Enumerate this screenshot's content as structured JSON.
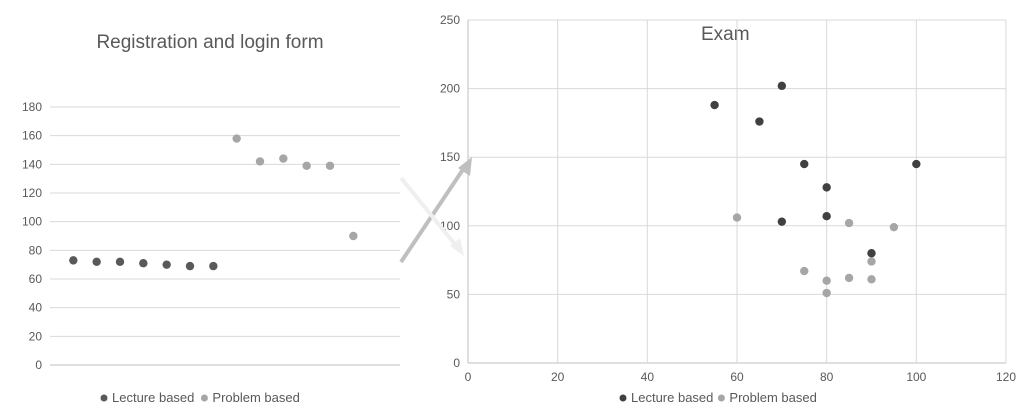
{
  "chart_data": [
    {
      "type": "scatter",
      "title": "Registration and login form",
      "xlabel": "",
      "ylabel": "",
      "ylim": [
        0,
        180
      ],
      "ytick_step": 20,
      "xlim": [
        0,
        15
      ],
      "x_tick_labels_shown": false,
      "grid": "horizontal",
      "legend": "bottom",
      "series": [
        {
          "name": "Lecture based",
          "color": "#595959",
          "x": [
            1,
            2,
            3,
            4,
            5,
            6,
            7
          ],
          "y": [
            73,
            72,
            72,
            71,
            70,
            69,
            69
          ]
        },
        {
          "name": "Problem based",
          "color": "#a6a6a6",
          "x": [
            8,
            9,
            10,
            11,
            12,
            13
          ],
          "y": [
            158,
            142,
            144,
            139,
            139,
            90
          ]
        }
      ]
    },
    {
      "type": "scatter",
      "title": "Exam",
      "xlabel": "",
      "ylabel": "",
      "xlim": [
        0,
        120
      ],
      "xtick_step": 20,
      "ylim": [
        0,
        250
      ],
      "ytick_step": 50,
      "grid": "both",
      "legend": "bottom",
      "series": [
        {
          "name": "Lecture based",
          "color": "#404040",
          "x": [
            55,
            65,
            70,
            70,
            75,
            80,
            80,
            90,
            100
          ],
          "y": [
            188,
            176,
            202,
            103,
            145,
            128,
            107,
            80,
            145
          ]
        },
        {
          "name": "Problem based",
          "color": "#a6a6a6",
          "x": [
            60,
            75,
            80,
            80,
            85,
            85,
            90,
            90,
            95
          ],
          "y": [
            106,
            67,
            60,
            51,
            62,
            102,
            61,
            74,
            99
          ]
        }
      ]
    }
  ]
}
